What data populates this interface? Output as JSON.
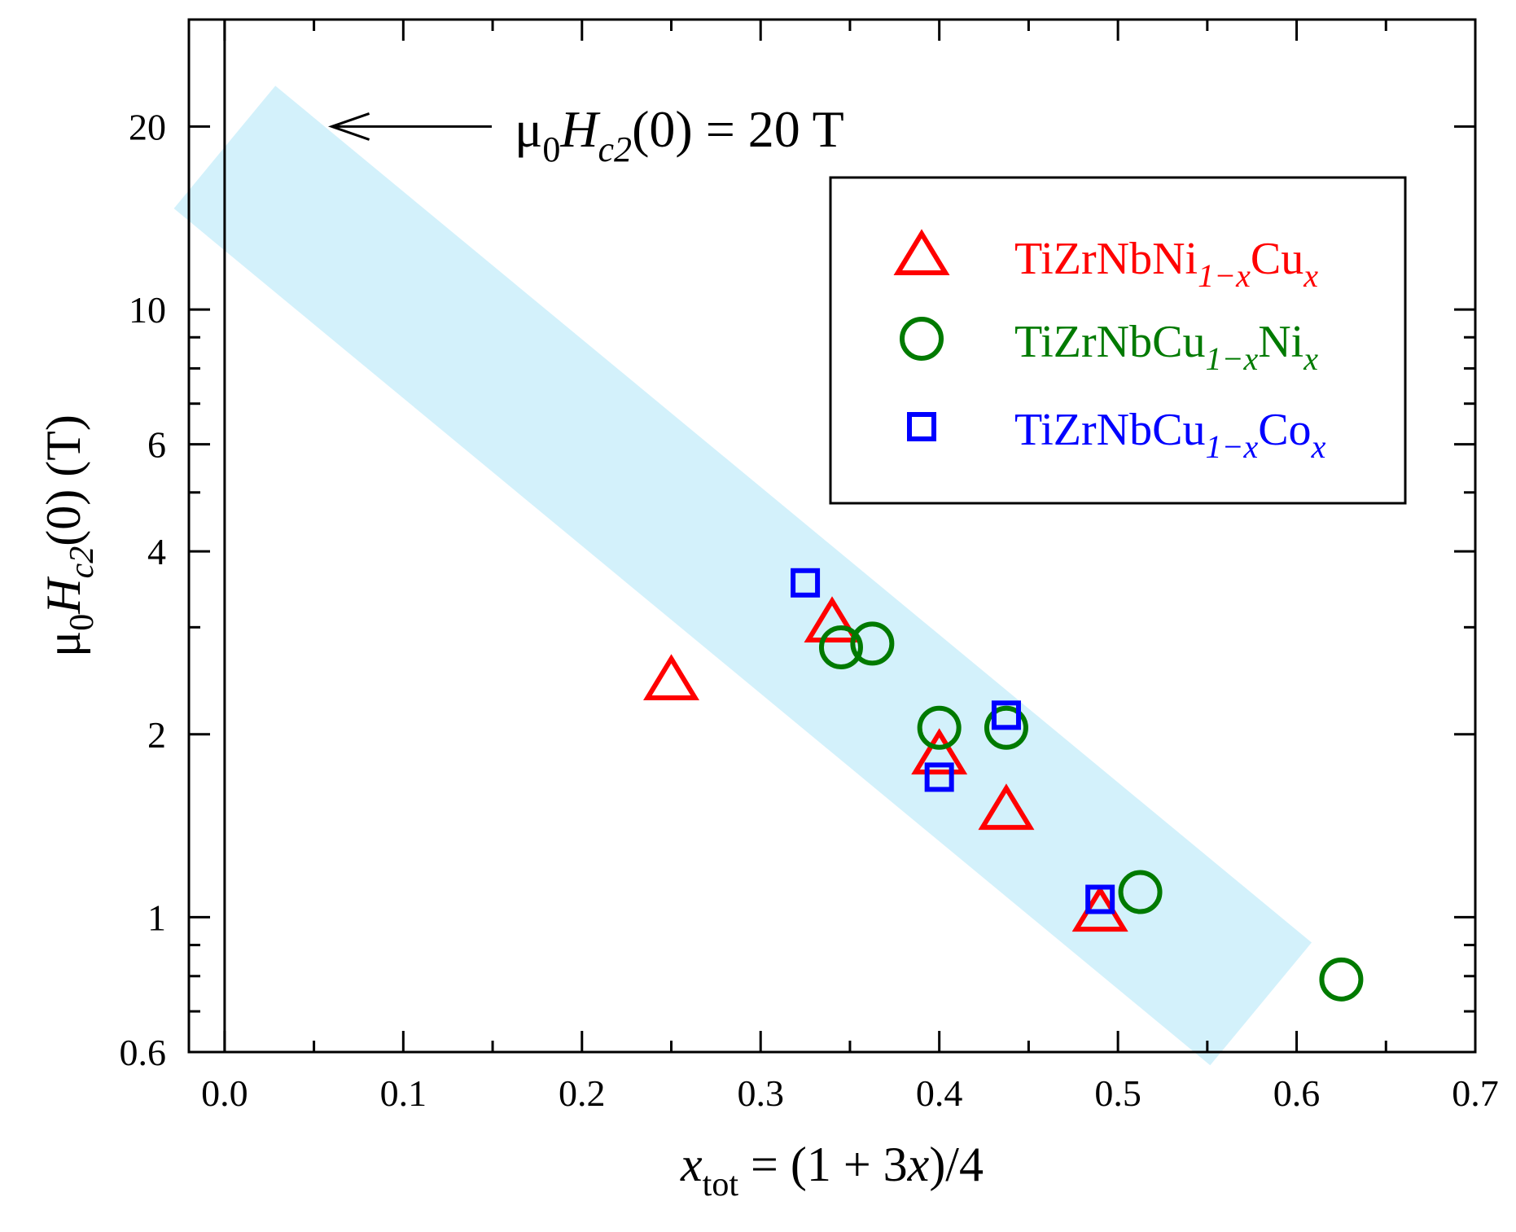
{
  "chart_data": {
    "type": "scatter",
    "x_scale": "linear",
    "y_scale": "log",
    "xlim": [
      -0.02,
      0.7
    ],
    "ylim": [
      0.6,
      30
    ],
    "x_ticks": [
      0.0,
      0.1,
      0.2,
      0.3,
      0.4,
      0.5,
      0.6,
      0.7
    ],
    "x_tick_labels": [
      "0.0",
      "0.1",
      "0.2",
      "0.3",
      "0.4",
      "0.5",
      "0.6",
      "0.7"
    ],
    "y_ticks": [
      0.6,
      1,
      2,
      4,
      6,
      10,
      20
    ],
    "y_tick_labels": [
      "0.6",
      "1",
      "2",
      "4",
      "6",
      "10",
      "20"
    ],
    "xlabel": {
      "main": "x",
      "sub": "tot",
      "rest": " = (1 + 3",
      "var": "x",
      "end": ")/4"
    },
    "ylabel": {
      "mu": "μ",
      "mu_sub": "0",
      "H": "H",
      "H_sub": "c2",
      "rest": "(0) (T)"
    },
    "vertical_line_x": 0.0,
    "band": {
      "color": "#d3f1fb",
      "start": {
        "x": 0.0,
        "y": 18.5
      },
      "end": {
        "x": 0.58,
        "y": 0.72
      },
      "half_width_decades": 0.17
    },
    "annotation": {
      "mu": "μ",
      "mu_sub": "0",
      "H": "H",
      "H_sub": "c2",
      "rest": "(0) = 20 T",
      "arrow_to": {
        "x": 0.06,
        "y": 20
      }
    },
    "series": [
      {
        "name": "TiZrNbNi1−xCux",
        "base": "TiZrNbNi",
        "sub1": "1−x",
        "mid": "Cu",
        "sub2": "x",
        "marker": "triangle",
        "color": "#ff0000",
        "points": [
          {
            "x": 0.25,
            "y": 2.45
          },
          {
            "x": 0.34,
            "y": 3.05
          },
          {
            "x": 0.4,
            "y": 1.85
          },
          {
            "x": 0.4375,
            "y": 1.5
          },
          {
            "x": 0.49,
            "y": 1.02
          }
        ]
      },
      {
        "name": "TiZrNbCu1−xNix",
        "base": "TiZrNbCu",
        "sub1": "1−x",
        "mid": "Ni",
        "sub2": "x",
        "marker": "circle",
        "color": "#007a00",
        "points": [
          {
            "x": 0.345,
            "y": 2.78
          },
          {
            "x": 0.3625,
            "y": 2.82
          },
          {
            "x": 0.4,
            "y": 2.05
          },
          {
            "x": 0.4375,
            "y": 2.05
          },
          {
            "x": 0.5125,
            "y": 1.1
          },
          {
            "x": 0.625,
            "y": 0.79
          }
        ]
      },
      {
        "name": "TiZrNbCu1−xCox",
        "base": "TiZrNbCu",
        "sub1": "1−x",
        "mid": "Co",
        "sub2": "x",
        "marker": "square",
        "color": "#0000ff",
        "points": [
          {
            "x": 0.325,
            "y": 3.55
          },
          {
            "x": 0.4,
            "y": 1.7
          },
          {
            "x": 0.4375,
            "y": 2.15
          },
          {
            "x": 0.49,
            "y": 1.07
          }
        ]
      }
    ]
  }
}
